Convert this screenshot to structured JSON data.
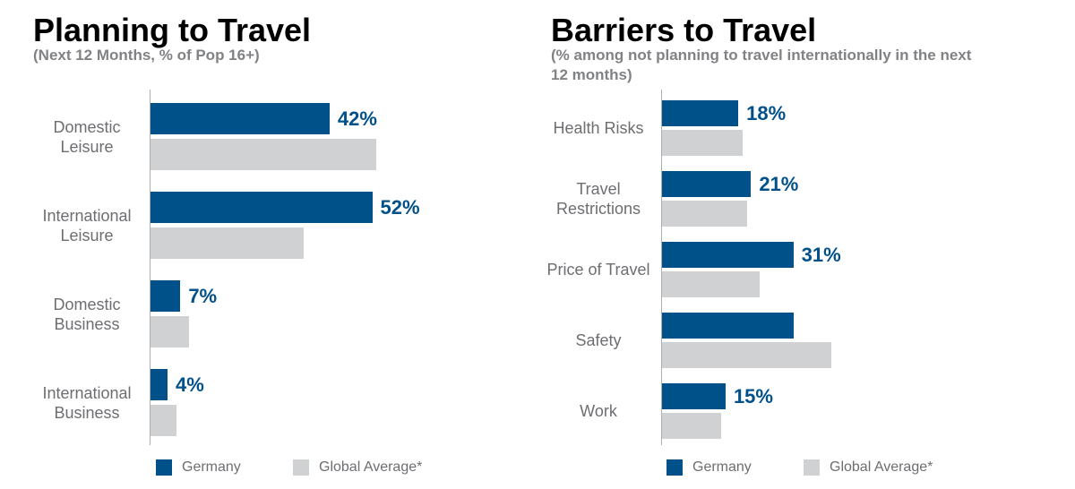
{
  "chart_data": [
    {
      "type": "bar",
      "orientation": "horizontal",
      "title": "Planning to Travel",
      "subtitle": "(Next 12 Months, % of Pop 16+)",
      "categories": [
        "Domestic Leisure",
        "International Leisure",
        "Domestic Business",
        "International Business"
      ],
      "series": [
        {
          "name": "Germany",
          "color": "#00508a",
          "values": [
            42,
            52,
            7,
            4
          ],
          "value_labels": [
            "42%",
            "52%",
            "7%",
            "4%"
          ]
        },
        {
          "name": "Global Average*",
          "color": "#d0d1d3",
          "values": [
            53,
            36,
            9,
            6
          ]
        }
      ]
    },
    {
      "type": "bar",
      "orientation": "horizontal",
      "title": "Barriers to Travel",
      "subtitle": "(% among not planning to travel internationally in the next 12 months)",
      "categories": [
        "Health Risks",
        "Travel Restrictions",
        "Price of Travel",
        "Safety",
        "Work"
      ],
      "series": [
        {
          "name": "Germany",
          "color": "#00508a",
          "values": [
            18,
            21,
            31,
            31,
            15
          ],
          "value_labels": [
            "18%",
            "21%",
            "31%",
            null,
            "15%"
          ]
        },
        {
          "name": "Global Average*",
          "color": "#d0d1d3",
          "values": [
            19,
            20,
            23,
            40,
            14
          ]
        }
      ]
    }
  ]
}
